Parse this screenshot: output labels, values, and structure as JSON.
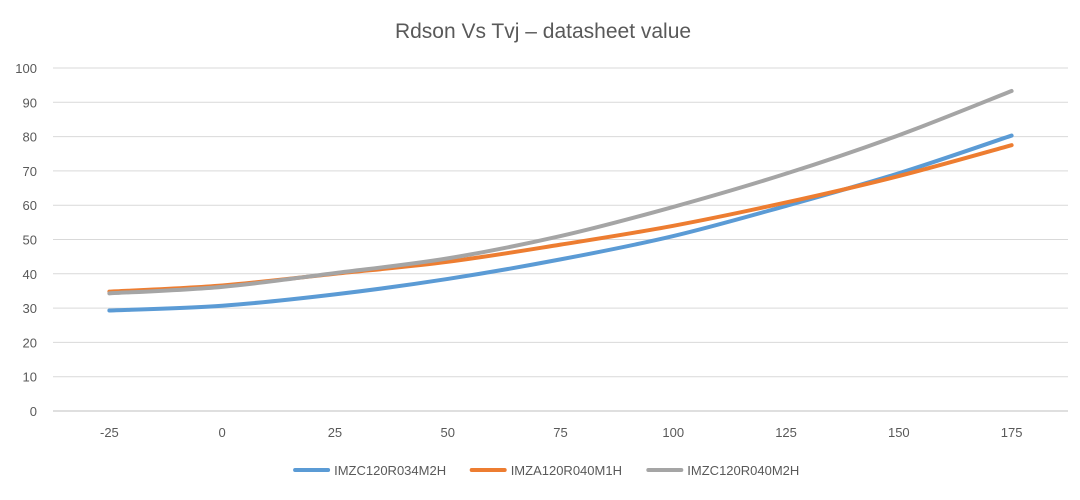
{
  "chart_data": {
    "type": "line",
    "title": "Rdson Vs Tvj – datasheet value",
    "xlabel": "",
    "ylabel": "",
    "categories": [
      "-25",
      "0",
      "25",
      "50",
      "75",
      "100",
      "125",
      "150",
      "175"
    ],
    "ylim": [
      0,
      100
    ],
    "yticks": [
      "0",
      "10",
      "20",
      "30",
      "40",
      "50",
      "60",
      "70",
      "80",
      "90",
      "100"
    ],
    "grid": true,
    "legend_position": "bottom",
    "series": [
      {
        "name": "IMZC120R034M2H",
        "color": "#5B9BD5",
        "values": [
          29.3,
          30.7,
          34,
          38.5,
          44.2,
          51,
          59.8,
          69.3,
          80.3
        ]
      },
      {
        "name": "IMZA120R040M1H",
        "color": "#ED7D31",
        "values": [
          34.8,
          36.6,
          40,
          43.5,
          48.5,
          54,
          60.8,
          68.5,
          77.5
        ]
      },
      {
        "name": "IMZC120R040M2H",
        "color": "#A5A5A5",
        "values": [
          34.3,
          36.2,
          40.2,
          44.5,
          51,
          59.5,
          69.2,
          80.4,
          93.3
        ]
      }
    ]
  }
}
